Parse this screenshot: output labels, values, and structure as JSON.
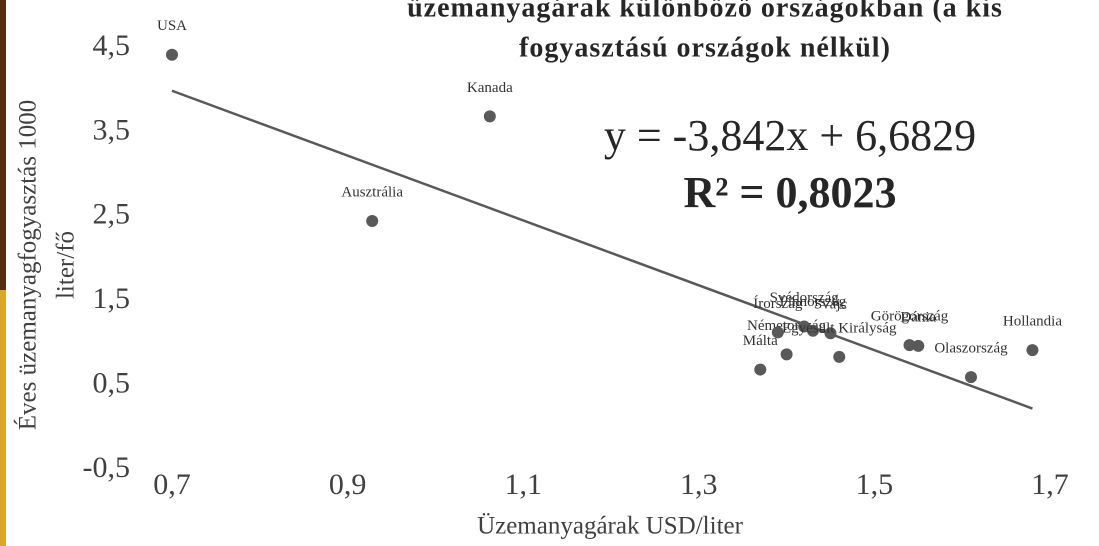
{
  "chart_data": {
    "type": "scatter",
    "title": [
      "üzemanyagárak különböző országokban (a kis",
      "fogyasztású országok nélkül)"
    ],
    "x_label": "Üzemanyagárak USD/liter",
    "y_label": [
      "Éves üzemanyagfogyasztás 1000",
      "liter/fő"
    ],
    "color": "#595959",
    "series": [
      {
        "name": null,
        "color": "#595959",
        "labels": [
          "USA",
          "Kanada",
          "Ausztrália",
          "Málta",
          "Németország",
          "Írország",
          "Svédország",
          "Finnország",
          "Svájc",
          "Egyesült Királyság",
          "Görögország",
          "Dánia",
          "Olaszország",
          "Hollandia"
        ],
        "x": [
          0.7,
          1.062,
          0.928,
          1.37,
          1.4,
          1.39,
          1.42,
          1.43,
          1.45,
          1.46,
          1.54,
          1.55,
          1.61,
          1.68
        ],
        "values": [
          4.42,
          3.69,
          2.45,
          0.69,
          0.87,
          1.13,
          1.2,
          1.15,
          1.12,
          0.84,
          0.98,
          0.97,
          0.6,
          0.92
        ]
      }
    ],
    "trendline": {
      "slope": -3.842,
      "intercept": 6.6829,
      "label": "y = -3,842x + 6,6829",
      "r2": 0.8023,
      "r2_label": "R² = 0,8023"
    },
    "xlim": [
      0.7,
      1.7
    ],
    "xticks": [
      {
        "value": 0.7,
        "label": "0,7"
      },
      {
        "value": 0.9,
        "label": "0,9"
      },
      {
        "value": 1.1,
        "label": "1,1"
      },
      {
        "value": 1.3,
        "label": "1,3"
      },
      {
        "value": 1.5,
        "label": "1,5"
      },
      {
        "value": 1.7,
        "label": "1,7"
      }
    ],
    "ylim": [
      -0.5,
      4.5
    ],
    "yticks": [
      {
        "value": -0.5,
        "label": "-0,5"
      },
      {
        "value": 0.5,
        "label": "0,5"
      },
      {
        "value": 1.5,
        "label": "1,5"
      },
      {
        "value": 2.5,
        "label": "2,5"
      },
      {
        "value": 3.5,
        "label": "3,5"
      },
      {
        "value": 4.5,
        "label": "4,5"
      }
    ],
    "grid": false
  }
}
